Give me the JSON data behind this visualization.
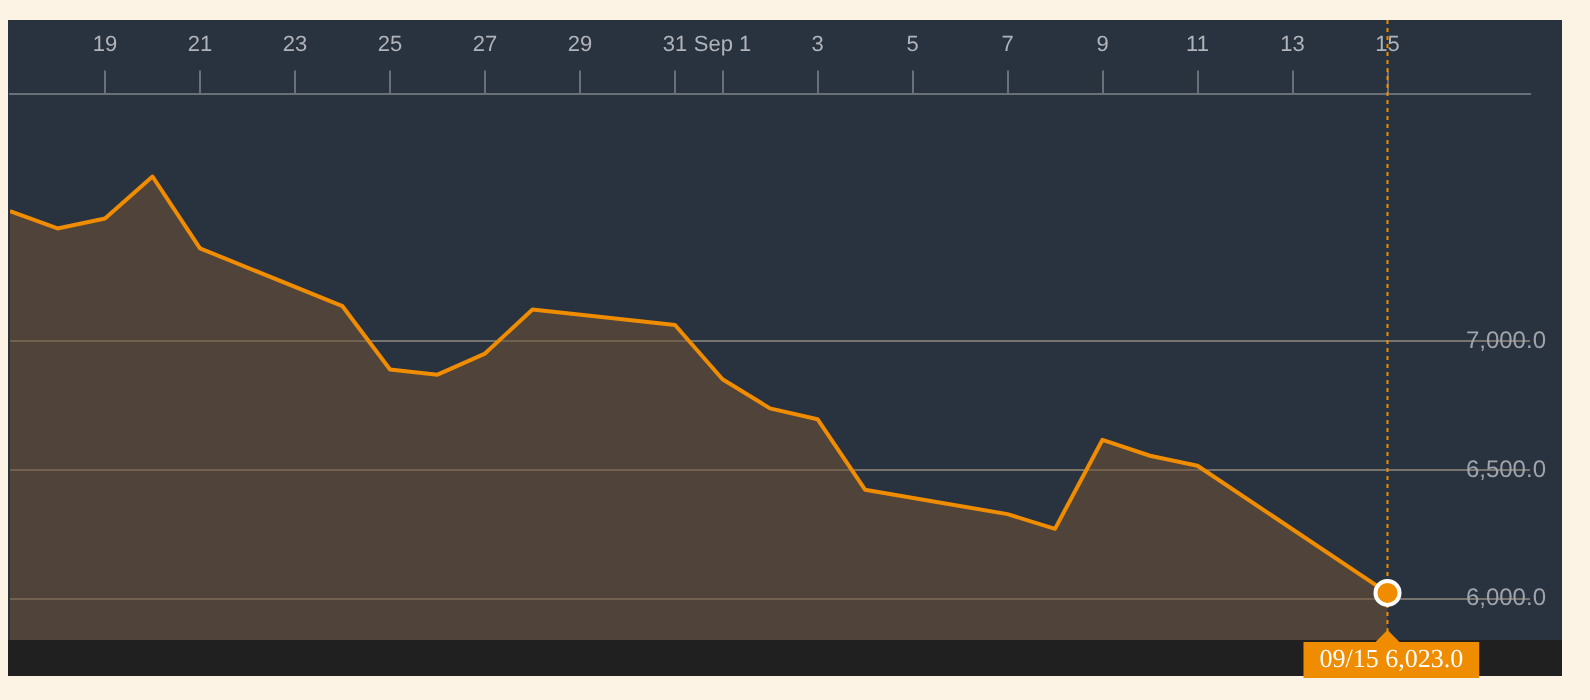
{
  "chart_data": {
    "type": "area",
    "x": [
      "--08-17",
      "--08-18",
      "--08-19",
      "--08-20",
      "--08-21",
      "--08-24",
      "--08-25",
      "--08-26",
      "--08-27",
      "--08-28",
      "--08-31",
      "--09-01",
      "--09-02",
      "--09-03",
      "--09-04",
      "--09-07",
      "--09-08",
      "--09-09",
      "--09-10",
      "--09-11",
      "--09-15"
    ],
    "series": [
      {
        "color": "#f08c00",
        "values": [
          7506,
          7439,
          7478,
          7641,
          7362,
          7137,
          6891,
          6871,
          6953,
          7124,
          7064,
          6853,
          6740,
          6698,
          6424,
          6329,
          6272,
          6618,
          6556,
          6517,
          6023
        ]
      }
    ],
    "xlim": [
      "--08-17",
      "--09-18"
    ],
    "xticks": [
      {
        "value": "--08-19",
        "label": "19"
      },
      {
        "value": "--08-21",
        "label": "21"
      },
      {
        "value": "--08-23",
        "label": "23"
      },
      {
        "value": "--08-25",
        "label": "25"
      },
      {
        "value": "--08-27",
        "label": "27"
      },
      {
        "value": "--08-29",
        "label": "29"
      },
      {
        "value": "--08-31",
        "label": "31"
      },
      {
        "value": "--09-01",
        "label": "Sep 1"
      },
      {
        "value": "--09-03",
        "label": "3"
      },
      {
        "value": "--09-05",
        "label": "5"
      },
      {
        "value": "--09-07",
        "label": "7"
      },
      {
        "value": "--09-09",
        "label": "9"
      },
      {
        "value": "--09-11",
        "label": "11"
      },
      {
        "value": "--09-13",
        "label": "13"
      },
      {
        "value": "--09-15",
        "label": "15"
      }
    ],
    "ylim": [
      5840,
      7960
    ],
    "yticks": [
      {
        "value": 6000,
        "label": "6,000.0"
      },
      {
        "value": 6500,
        "label": "6,500.0"
      },
      {
        "value": 7000,
        "label": "7,000.0"
      }
    ],
    "grid": "y",
    "legend": false,
    "marker": "none",
    "line_style": "solid",
    "ref_lines": [
      {
        "axis": "x",
        "value": "--09-15",
        "color": "#f08c00",
        "line_style": "dotted"
      }
    ],
    "annotations": [
      {
        "text": "09/15 6,023.0",
        "x": "--09-15",
        "y": 6023
      }
    ]
  }
}
